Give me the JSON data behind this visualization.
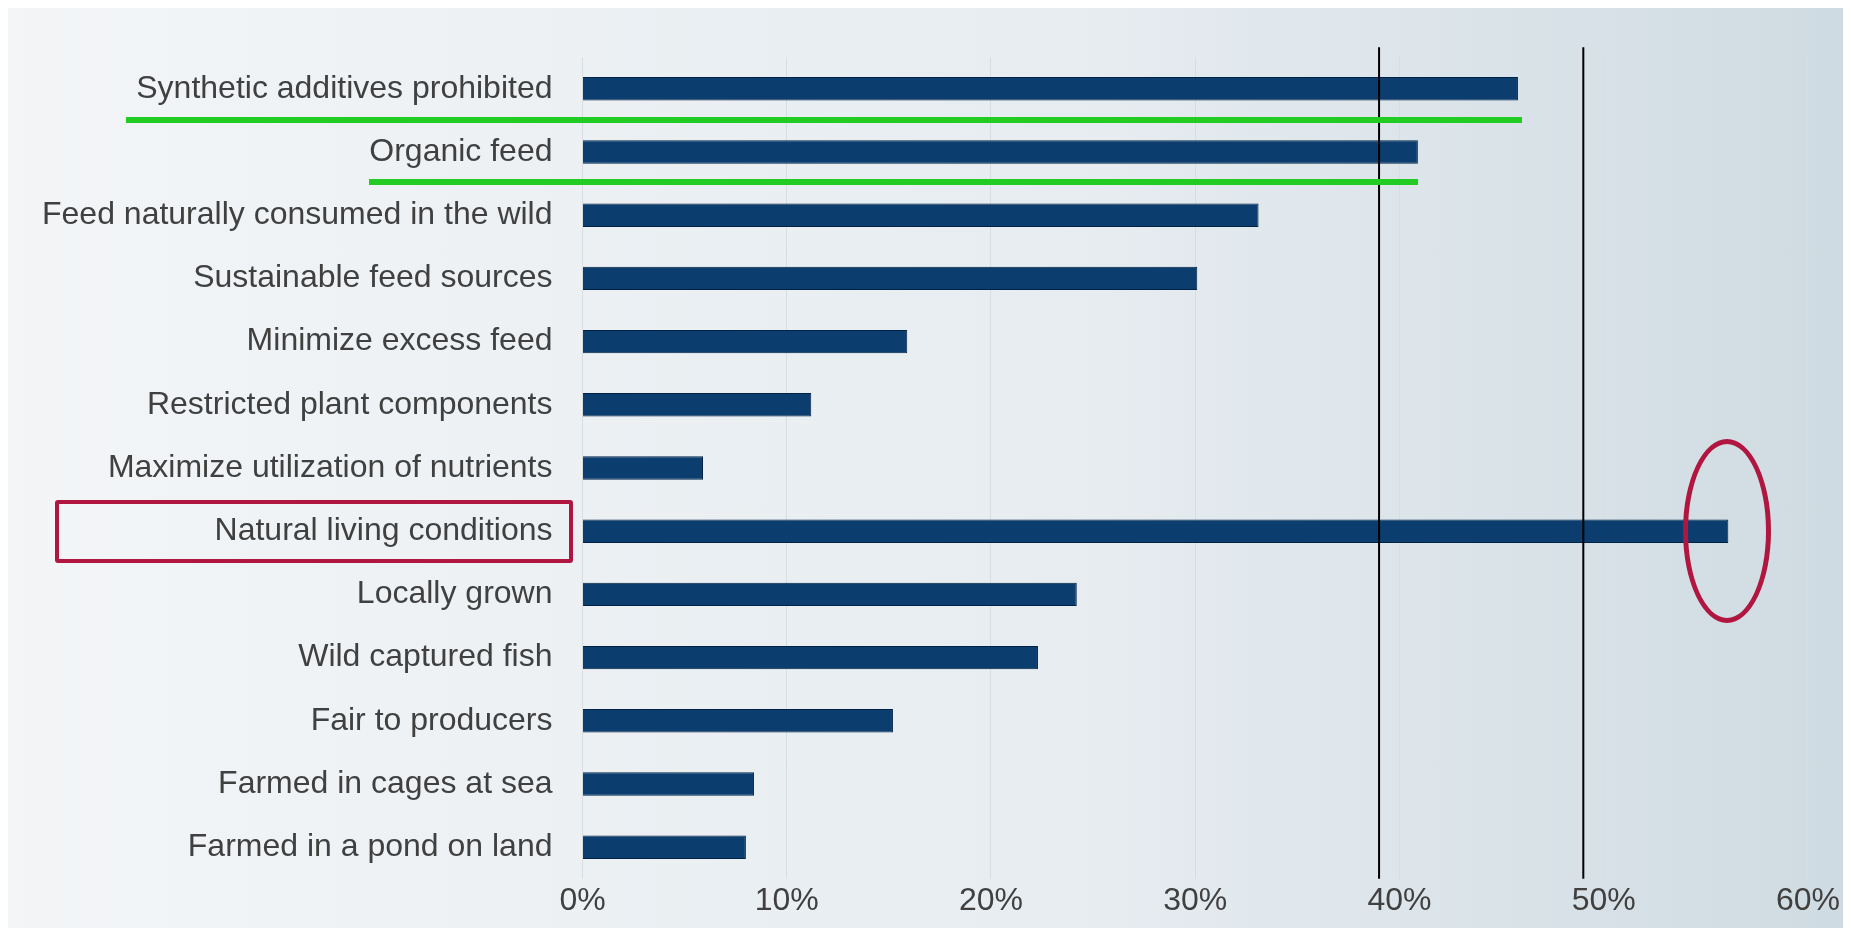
{
  "chart_data": {
    "type": "bar",
    "orientation": "horizontal",
    "categories": [
      "Synthetic additives prohibited",
      "Organic feed",
      "Feed naturally consumed in the wild",
      "Sustainable feed sources",
      "Minimize excess feed",
      "Restricted plant components",
      "Maximize utilization of nutrients",
      "Natural living conditions",
      "Locally grown",
      "Wild captured fish",
      "Fair to producers",
      "Farmed in cages at sea",
      "Farmed in a pond on land"
    ],
    "values": [
      45.8,
      40.9,
      33.1,
      30.1,
      15.9,
      11.2,
      5.9,
      56.1,
      24.2,
      22.3,
      15.2,
      8.4,
      8.0
    ],
    "color": "#0b3d6e",
    "xlim": [
      0,
      60
    ],
    "xticks": [
      {
        "value": 0,
        "label": "0%"
      },
      {
        "value": 10,
        "label": "10%"
      },
      {
        "value": 20,
        "label": "20%"
      },
      {
        "value": 30,
        "label": "30%"
      },
      {
        "value": 40,
        "label": "40%"
      },
      {
        "value": 50,
        "label": "50%"
      },
      {
        "value": 60,
        "label": "60%"
      }
    ],
    "grid": "x",
    "ref_lines": [
      {
        "axis": "x",
        "value": 39,
        "color": "#000000"
      },
      {
        "axis": "x",
        "value": 49,
        "color": "#000000"
      }
    ]
  }
}
